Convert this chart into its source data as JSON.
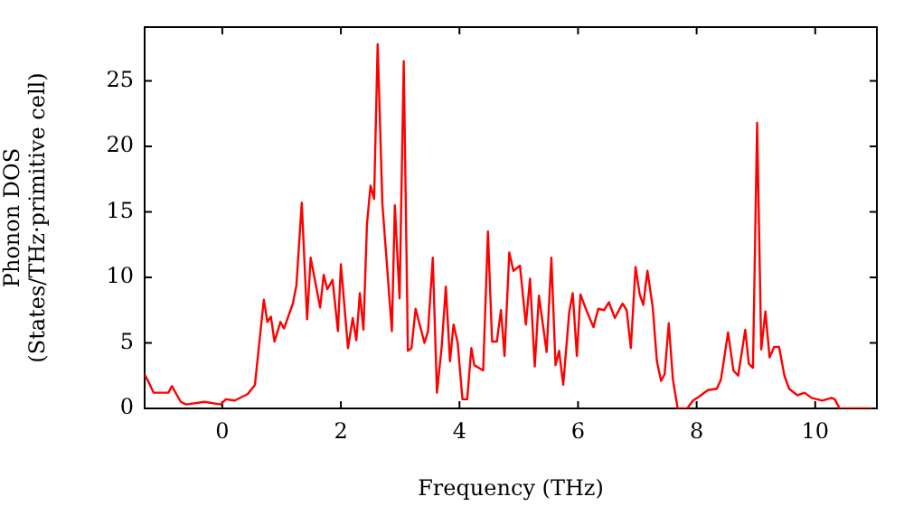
{
  "chart_data": {
    "type": "line",
    "xlabel": "Frequency (THz)",
    "ylabel": "Phonon DOS\n(States/THz·primitive cell)",
    "x": [
      -1.31,
      -1.22,
      -1.16,
      -0.91,
      -0.85,
      -0.7,
      -0.61,
      -0.3,
      -0.03,
      0.06,
      0.21,
      0.43,
      0.55,
      0.64,
      0.7,
      0.76,
      0.82,
      0.88,
      0.98,
      1.04,
      1.19,
      1.25,
      1.34,
      1.43,
      1.49,
      1.65,
      1.71,
      1.77,
      1.86,
      1.95,
      2.0,
      2.12,
      2.2,
      2.26,
      2.32,
      2.38,
      2.44,
      2.5,
      2.56,
      2.62,
      2.7,
      2.86,
      2.91,
      2.99,
      3.06,
      3.13,
      3.19,
      3.26,
      3.41,
      3.47,
      3.55,
      3.62,
      3.7,
      3.77,
      3.84,
      3.9,
      3.97,
      4.05,
      4.13,
      4.2,
      4.25,
      4.4,
      4.48,
      4.55,
      4.63,
      4.7,
      4.76,
      4.84,
      4.91,
      5.02,
      5.12,
      5.19,
      5.27,
      5.34,
      5.47,
      5.55,
      5.62,
      5.68,
      5.75,
      5.85,
      5.91,
      5.98,
      6.04,
      6.14,
      6.26,
      6.34,
      6.44,
      6.52,
      6.62,
      6.75,
      6.82,
      6.89,
      6.97,
      7.04,
      7.1,
      7.17,
      7.26,
      7.33,
      7.4,
      7.46,
      7.53,
      7.6,
      7.68,
      7.84,
      7.94,
      8.04,
      8.19,
      8.34,
      8.41,
      8.53,
      8.62,
      8.7,
      8.82,
      8.88,
      8.95,
      9.02,
      9.09,
      9.16,
      9.23,
      9.31,
      9.39,
      9.48,
      9.56,
      9.7,
      9.82,
      9.94,
      10.12,
      10.27,
      10.33,
      10.41,
      10.95
    ],
    "series": [
      {
        "color": "#ff0000",
        "values": [
          2.6,
          1.8,
          1.2,
          1.2,
          1.7,
          0.5,
          0.3,
          0.5,
          0.3,
          0.7,
          0.6,
          1.1,
          1.8,
          5.7,
          8.3,
          6.6,
          7.0,
          5.1,
          6.6,
          6.1,
          8.0,
          9.4,
          15.7,
          6.8,
          11.5,
          7.7,
          10.2,
          9.1,
          9.8,
          5.9,
          11.0,
          4.6,
          6.9,
          5.2,
          8.8,
          6.0,
          14.1,
          17.0,
          16.0,
          27.8,
          15.6,
          5.9,
          15.5,
          8.4,
          26.5,
          4.4,
          4.6,
          7.6,
          5.0,
          5.9,
          11.5,
          1.2,
          4.7,
          9.3,
          3.6,
          6.4,
          5.0,
          0.7,
          0.7,
          4.6,
          3.3,
          2.9,
          13.5,
          5.1,
          5.1,
          7.5,
          4.0,
          11.9,
          10.5,
          10.9,
          6.4,
          9.9,
          3.2,
          8.6,
          4.3,
          11.5,
          3.3,
          4.4,
          1.8,
          7.3,
          8.8,
          4.0,
          8.7,
          7.5,
          6.2,
          7.6,
          7.5,
          8.1,
          6.9,
          8.0,
          7.5,
          4.6,
          10.8,
          8.7,
          7.9,
          10.5,
          7.7,
          3.6,
          2.1,
          2.6,
          6.5,
          2.2,
          0,
          0,
          0.6,
          0.9,
          1.4,
          1.5,
          2.2,
          5.8,
          2.9,
          2.5,
          6.0,
          3.4,
          3.1,
          21.8,
          4.5,
          7.4,
          3.9,
          4.7,
          4.7,
          2.5,
          1.5,
          1.0,
          1.2,
          0.8,
          0.6,
          0.8,
          0.7,
          0,
          0
        ]
      }
    ],
    "xlim": [
      -1.31,
      11.04
    ],
    "ylim": [
      0,
      29.1
    ],
    "xticks": [
      0,
      2,
      4,
      6,
      8,
      10
    ],
    "yticks": [
      0,
      5,
      10,
      15,
      20,
      25
    ],
    "grid": false,
    "legend": false
  }
}
